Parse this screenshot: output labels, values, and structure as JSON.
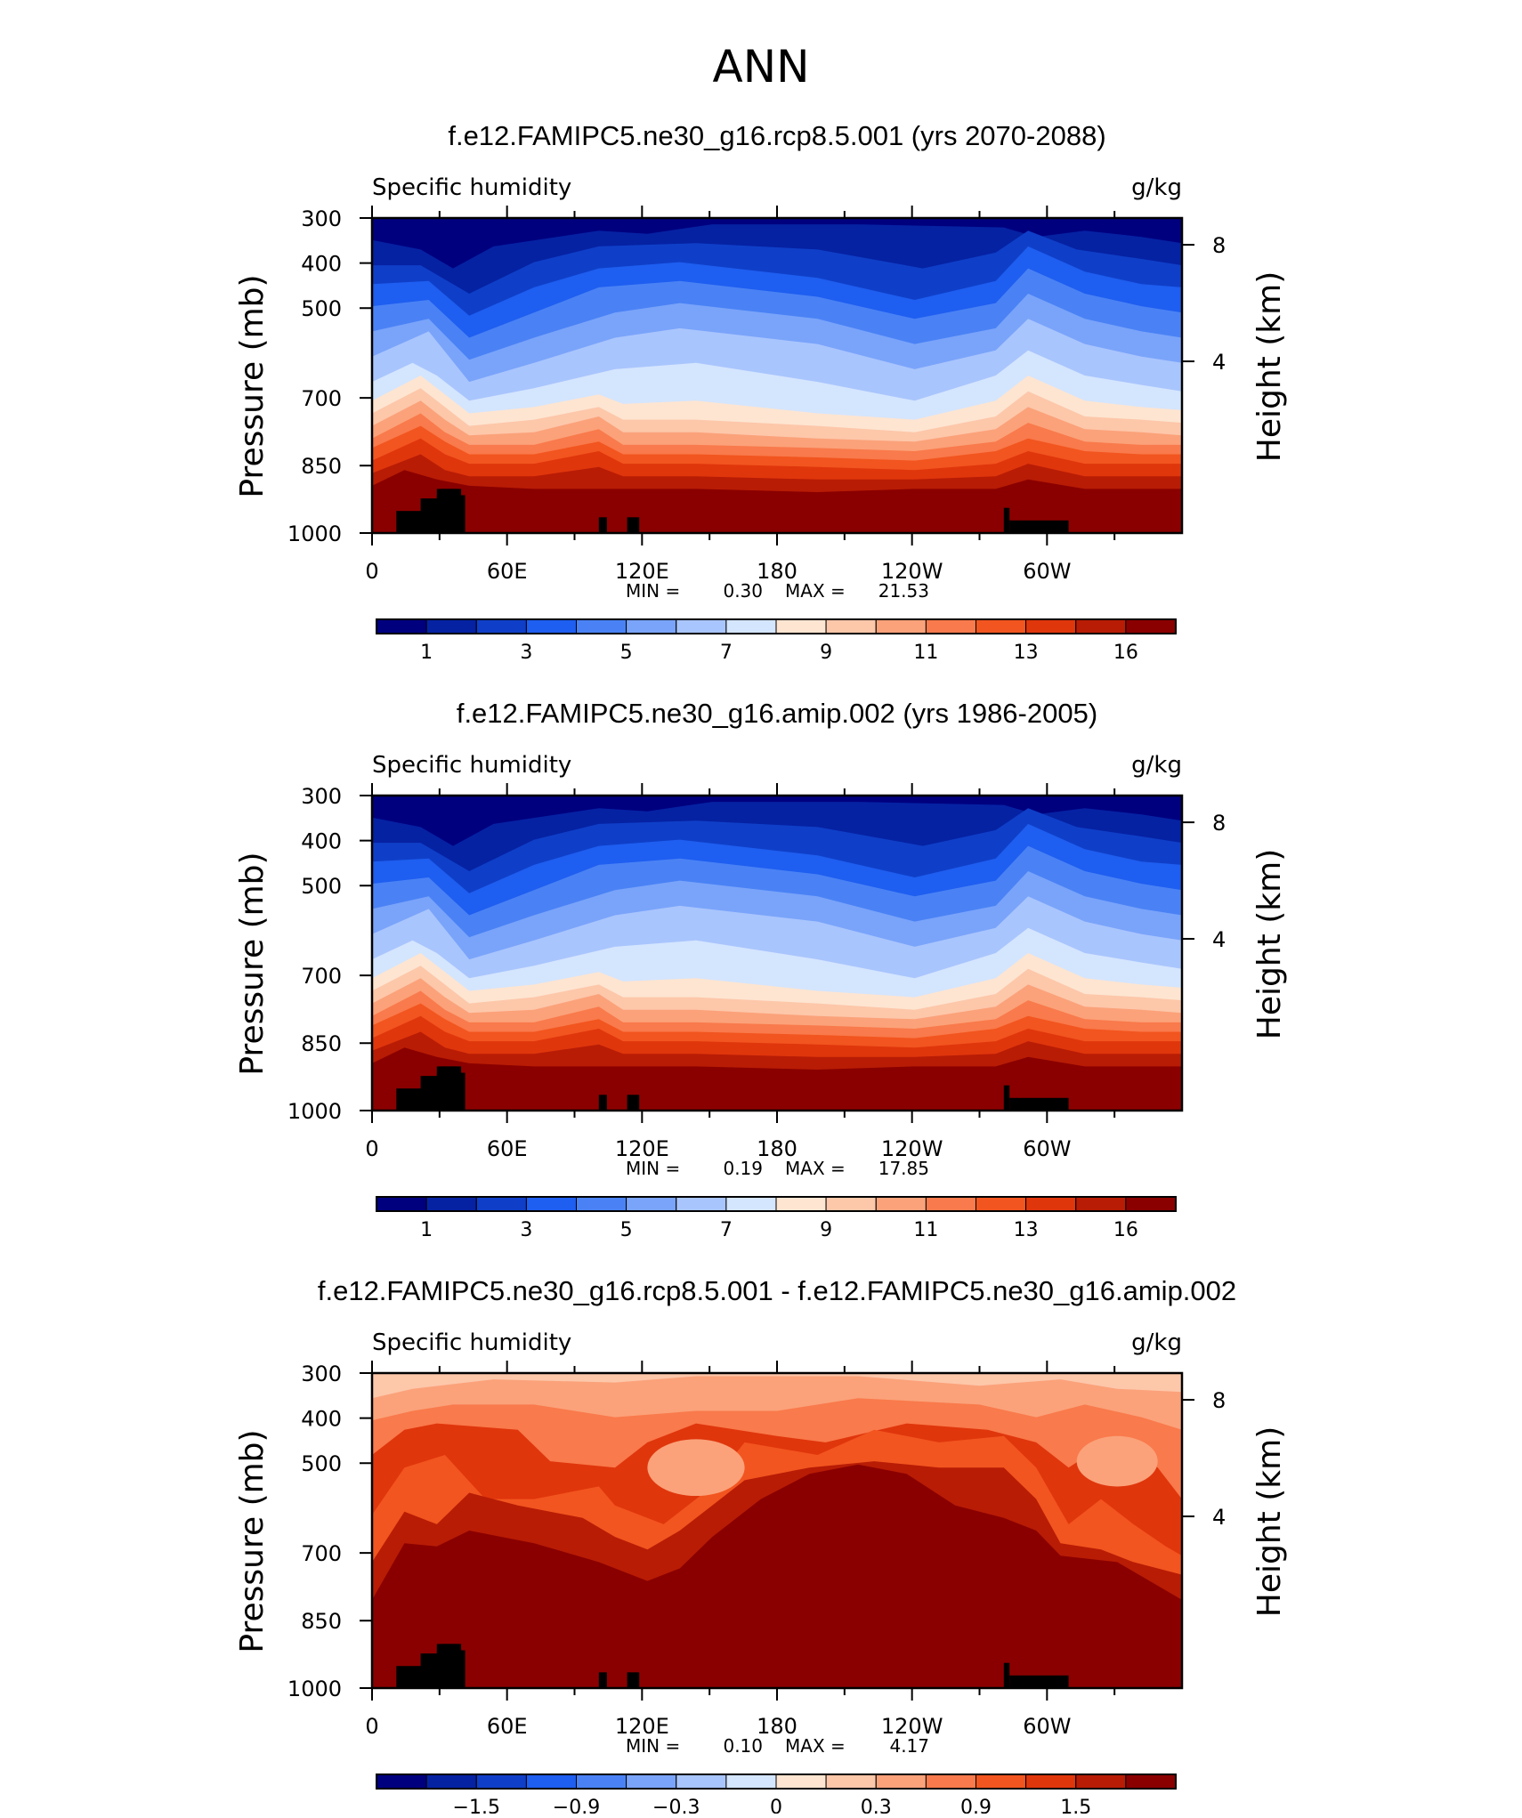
{
  "page_title": "ANN",
  "chart_data": [
    {
      "type": "heatmap",
      "title": "f.e12.FAMIPC5.ne30_g16.rcp8.5.001 (yrs 2070-2088)",
      "variable": "Specific humidity",
      "units": "g/kg",
      "ylabel": "Pressure (mb)",
      "ylabel_right": "Height (km)",
      "x_ticks": [
        "0",
        "60E",
        "120E",
        "180",
        "120W",
        "60W"
      ],
      "y_ticks": [
        "300",
        "400",
        "500",
        "700",
        "850",
        "1000"
      ],
      "y_right_ticks": [
        "8",
        "4"
      ],
      "min_label": "MIN =",
      "min_value": "0.30",
      "max_label": "MAX =",
      "max_value": "21.53",
      "colorbar_labels": [
        "1",
        "3",
        "5",
        "7",
        "9",
        "11",
        "13",
        "16"
      ],
      "palette": "seq"
    },
    {
      "type": "heatmap",
      "title": "f.e12.FAMIPC5.ne30_g16.amip.002 (yrs 1986-2005)",
      "variable": "Specific humidity",
      "units": "g/kg",
      "ylabel": "Pressure (mb)",
      "ylabel_right": "Height (km)",
      "x_ticks": [
        "0",
        "60E",
        "120E",
        "180",
        "120W",
        "60W"
      ],
      "y_ticks": [
        "300",
        "400",
        "500",
        "700",
        "850",
        "1000"
      ],
      "y_right_ticks": [
        "8",
        "4"
      ],
      "min_label": "MIN =",
      "min_value": "0.19",
      "max_label": "MAX =",
      "max_value": "17.85",
      "colorbar_labels": [
        "1",
        "3",
        "5",
        "7",
        "9",
        "11",
        "13",
        "16"
      ],
      "palette": "seq"
    },
    {
      "type": "heatmap",
      "title": "f.e12.FAMIPC5.ne30_g16.rcp8.5.001 - f.e12.FAMIPC5.ne30_g16.amip.002",
      "variable": "Specific humidity",
      "units": "g/kg",
      "ylabel": "Pressure (mb)",
      "ylabel_right": "Height (km)",
      "x_ticks": [
        "0",
        "60E",
        "120E",
        "180",
        "120W",
        "60W"
      ],
      "y_ticks": [
        "300",
        "400",
        "500",
        "700",
        "850",
        "1000"
      ],
      "y_right_ticks": [
        "8",
        "4"
      ],
      "min_label": "MIN =",
      "min_value": "0.10",
      "max_label": "MAX =",
      "max_value": "4.17",
      "colorbar_labels": [
        "−1.5",
        "−0.9",
        "−0.3",
        "0",
        "0.3",
        "0.9",
        "1.5"
      ],
      "palette": "diff"
    }
  ],
  "colors": {
    "seq": [
      "#00007f",
      "#0522a3",
      "#0f3fc8",
      "#1e5ef0",
      "#4a82f5",
      "#7aa4fa",
      "#a9c5fd",
      "#d4e5fe",
      "#fde5d1",
      "#fdc7aa",
      "#fba27a",
      "#f97a4c",
      "#f2551f",
      "#e0360c",
      "#b81c05",
      "#8a0000"
    ],
    "land": "#000000"
  }
}
